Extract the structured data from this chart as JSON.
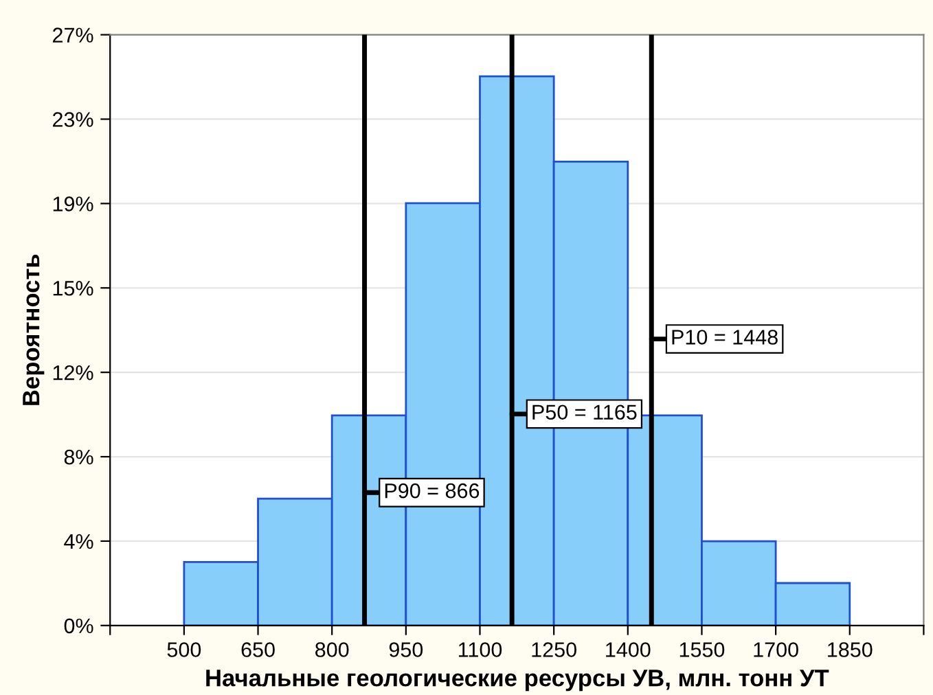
{
  "chart_data": {
    "type": "histogram",
    "xlabel": "Начальные геологические ресурсы УВ, млн. тонн УТ",
    "ylabel": "Вероятность",
    "bins": [
      500,
      650,
      800,
      950,
      1100,
      1250,
      1400,
      1550,
      1700,
      1850
    ],
    "values": [
      2.9,
      5.8,
      9.6,
      19.3,
      25.1,
      21.2,
      9.6,
      3.85,
      1.94
    ],
    "color": "#87cefa",
    "xlim": [
      350,
      2000
    ],
    "xticks": [
      {
        "value": 350,
        "label": null
      },
      500,
      650,
      800,
      950,
      1100,
      1250,
      1400,
      1550,
      1700,
      1850,
      {
        "value": 2000,
        "label": null
      }
    ],
    "ylim": [
      0,
      27
    ],
    "yticks": [
      {
        "value": 0,
        "label": "0%"
      },
      {
        "value": 3.857,
        "label": "4%"
      },
      {
        "value": 7.714,
        "label": "8%"
      },
      {
        "value": 11.571,
        "label": "12%"
      },
      {
        "value": 15.429,
        "label": "15%"
      },
      {
        "value": 19.286,
        "label": "19%"
      },
      {
        "value": 23.143,
        "label": "23%"
      },
      {
        "value": 27,
        "label": "27%"
      }
    ],
    "grid": "y",
    "ref_lines": [
      {
        "axis": "x",
        "value": 866,
        "label": "P90 = 866",
        "color": "#000000",
        "line_style": "solid"
      },
      {
        "axis": "x",
        "value": 1165,
        "label": "P50 = 1165",
        "color": "#000000",
        "line_style": "solid"
      },
      {
        "axis": "x",
        "value": 1448,
        "label": "P10 = 1448",
        "color": "#000000",
        "line_style": "solid"
      }
    ]
  }
}
